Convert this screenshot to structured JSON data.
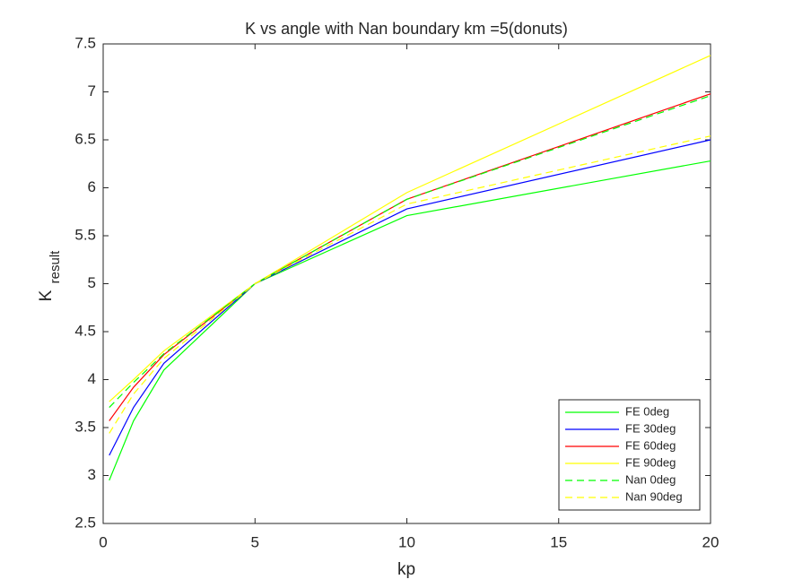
{
  "chart_data": {
    "type": "line",
    "title": "K vs angle with Nan boundary km =5(donuts)",
    "xlabel": "kp",
    "ylabel": "K",
    "ylabel_subscript": "result",
    "x": [
      0.2,
      1,
      2,
      5,
      10,
      20
    ],
    "series": [
      {
        "name": "FE 0deg",
        "color": "#00ff00",
        "dash": false,
        "values": [
          2.95,
          3.57,
          4.1,
          5.0,
          5.71,
          6.28
        ]
      },
      {
        "name": "FE 30deg",
        "color": "#0000ff",
        "dash": false,
        "values": [
          3.21,
          3.71,
          4.17,
          5.0,
          5.78,
          6.5
        ]
      },
      {
        "name": "FE 60deg",
        "color": "#ff0000",
        "dash": false,
        "values": [
          3.57,
          3.92,
          4.26,
          5.0,
          5.88,
          6.98
        ]
      },
      {
        "name": "FE 90deg",
        "color": "#ffff00",
        "dash": false,
        "values": [
          3.77,
          4.0,
          4.3,
          5.0,
          5.95,
          7.38
        ]
      },
      {
        "name": "Nan 0deg",
        "color": "#00ff00",
        "dash": true,
        "values": [
          3.71,
          3.97,
          4.27,
          5.0,
          5.88,
          6.96
        ]
      },
      {
        "name": "Nan 90deg",
        "color": "#ffff00",
        "dash": true,
        "values": [
          3.44,
          3.85,
          4.22,
          5.0,
          5.83,
          6.54
        ]
      }
    ],
    "xlim": [
      0,
      20
    ],
    "xticks": [
      0,
      5,
      10,
      15,
      20
    ],
    "ylim": [
      2.5,
      7.5
    ],
    "yticks": [
      2.5,
      3,
      3.5,
      4,
      4.5,
      5,
      5.5,
      6,
      6.5,
      7,
      7.5
    ],
    "grid": false,
    "legend": "southeast"
  }
}
